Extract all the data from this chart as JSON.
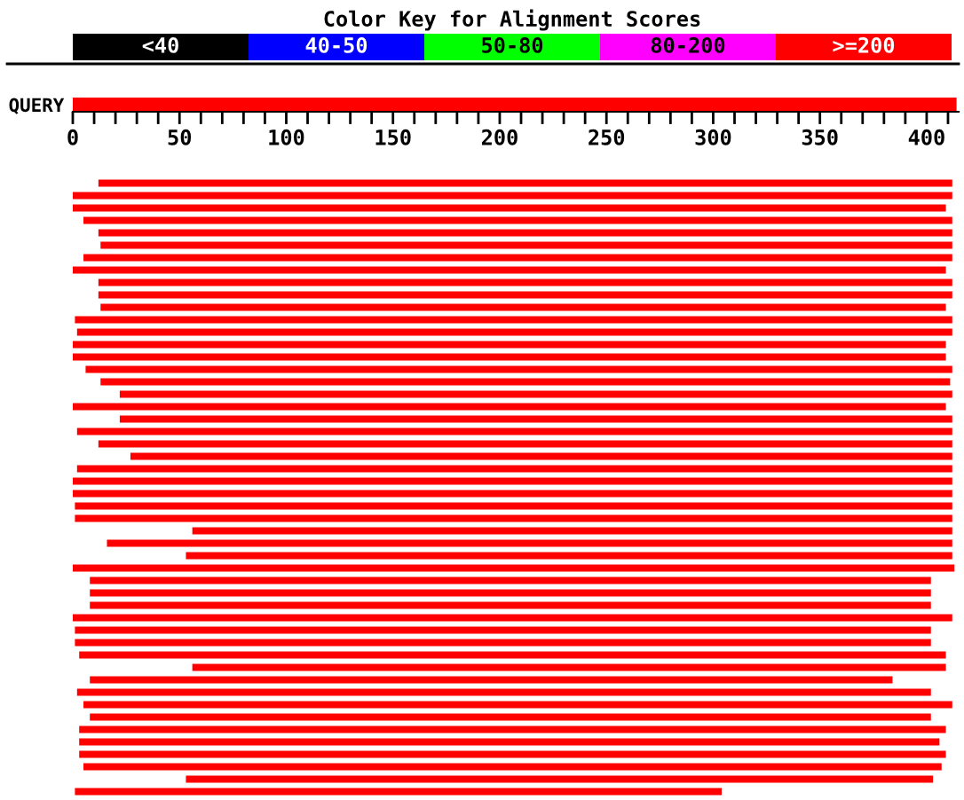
{
  "chart_data": [
    {
      "type": "other",
      "title": "Color Key for Alignment Scores",
      "categories": [
        "<40",
        "40-50",
        "50-80",
        "80-200",
        ">=200"
      ],
      "colors": [
        "#000000",
        "#0000ff",
        "#00ff00",
        "#ff00ff",
        "#ff0000"
      ]
    },
    {
      "type": "bar",
      "orientation": "horizontal",
      "categories": [
        "QUERY"
      ],
      "base": [
        0
      ],
      "values": [
        414
      ],
      "color": "#ff0000",
      "xlim": [
        0,
        415
      ],
      "xticks": [
        0,
        {
          "value": 10,
          "label": null
        },
        {
          "value": 20,
          "label": null
        },
        {
          "value": 30,
          "label": null
        },
        {
          "value": 40,
          "label": null
        },
        50,
        {
          "value": 60,
          "label": null
        },
        {
          "value": 70,
          "label": null
        },
        {
          "value": 80,
          "label": null
        },
        {
          "value": 90,
          "label": null
        },
        100,
        {
          "value": 110,
          "label": null
        },
        {
          "value": 120,
          "label": null
        },
        {
          "value": 130,
          "label": null
        },
        {
          "value": 140,
          "label": null
        },
        150,
        {
          "value": 160,
          "label": null
        },
        {
          "value": 170,
          "label": null
        },
        {
          "value": 180,
          "label": null
        },
        {
          "value": 190,
          "label": null
        },
        200,
        {
          "value": 210,
          "label": null
        },
        {
          "value": 220,
          "label": null
        },
        {
          "value": 230,
          "label": null
        },
        {
          "value": 240,
          "label": null
        },
        250,
        {
          "value": 260,
          "label": null
        },
        {
          "value": 270,
          "label": null
        },
        {
          "value": 280,
          "label": null
        },
        {
          "value": 290,
          "label": null
        },
        300,
        {
          "value": 310,
          "label": null
        },
        {
          "value": 320,
          "label": null
        },
        {
          "value": 330,
          "label": null
        },
        {
          "value": 340,
          "label": null
        },
        350,
        {
          "value": 360,
          "label": null
        },
        {
          "value": 370,
          "label": null
        },
        {
          "value": 380,
          "label": null
        },
        {
          "value": 390,
          "label": null
        },
        400,
        {
          "value": 410,
          "label": null
        }
      ]
    },
    {
      "type": "bar",
      "orientation": "horizontal",
      "xlim": [
        0,
        415
      ],
      "tick_labels": false,
      "color": "#ff0000",
      "categories": [
        null,
        null,
        null,
        null,
        null,
        null,
        null,
        null,
        null,
        null,
        null,
        null,
        null,
        null,
        null,
        null,
        null,
        null,
        null,
        null,
        null,
        null,
        null,
        null,
        null,
        null,
        null,
        null,
        null,
        null,
        null,
        null,
        null,
        null,
        null,
        null,
        null,
        null,
        null,
        null,
        null,
        null,
        null,
        null,
        null,
        null,
        null,
        null,
        null,
        null
      ],
      "base": [
        12,
        0,
        0,
        5,
        12,
        13,
        5,
        0,
        12,
        12,
        13,
        1,
        2,
        0,
        0,
        6,
        13,
        22,
        0,
        22,
        2,
        12,
        27,
        2,
        0,
        0,
        1,
        1,
        56,
        16,
        53,
        0,
        8,
        8,
        8,
        0,
        1,
        1,
        3,
        56,
        8,
        2,
        5,
        8,
        3,
        3,
        3,
        5,
        53,
        1
      ],
      "values": [
        400,
        412,
        409,
        407,
        400,
        399,
        407,
        409,
        400,
        400,
        396,
        411,
        410,
        409,
        409,
        406,
        398,
        390,
        409,
        390,
        410,
        400,
        385,
        410,
        412,
        412,
        411,
        411,
        356,
        396,
        359,
        413,
        394,
        394,
        394,
        412,
        401,
        401,
        406,
        353,
        376,
        400,
        407,
        394,
        406,
        403,
        406,
        402,
        350,
        303
      ]
    }
  ]
}
